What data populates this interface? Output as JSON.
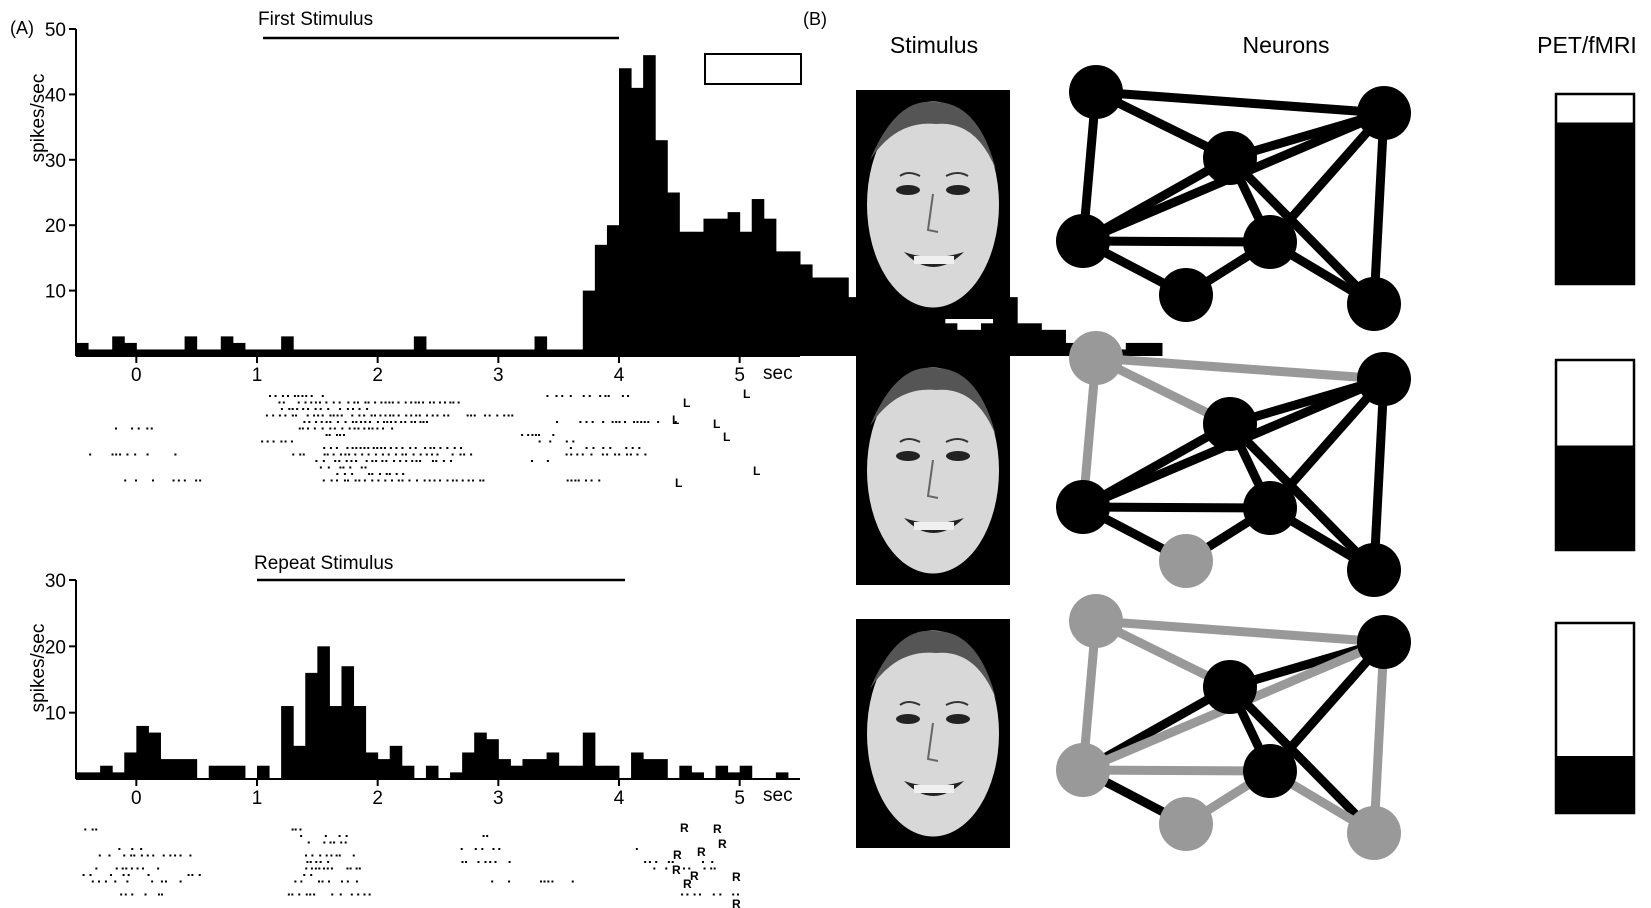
{
  "figure": {
    "panel_a_label": "(A)",
    "panel_b_label": "(B)"
  },
  "chart_data": [
    {
      "type": "bar",
      "panel": "A-top",
      "title": "First Stimulus",
      "ylabel": "spikes/sec",
      "x_unit_label": "sec",
      "xlim": [
        -0.5,
        5.5
      ],
      "ylim": [
        0,
        50
      ],
      "x_ticks": [
        0,
        1,
        2,
        3,
        4,
        5
      ],
      "y_ticks": [
        10,
        20,
        30,
        40,
        50
      ],
      "stimulus_bar": [
        1.05,
        4.0
      ],
      "bin_width": 0.1,
      "bins_start": -0.5,
      "values": [
        2,
        1,
        1,
        3,
        2,
        1,
        1,
        1,
        1,
        3,
        1,
        1,
        3,
        2,
        1,
        1,
        1,
        3,
        1,
        1,
        1,
        1,
        1,
        1,
        1,
        1,
        1,
        1,
        3,
        1,
        1,
        1,
        1,
        1,
        1,
        1,
        1,
        1,
        3,
        1,
        1,
        1,
        10,
        17,
        20,
        44,
        41,
        46,
        33,
        25,
        19,
        19,
        21,
        21,
        22,
        19,
        24,
        21,
        16,
        16,
        14,
        12,
        12,
        12,
        9,
        9,
        9,
        8,
        8,
        8,
        7,
        6,
        5,
        4,
        4,
        5,
        8,
        9,
        5,
        5,
        4,
        4,
        2,
        2,
        2,
        2,
        1,
        2,
        2,
        2
      ],
      "raster_label": "L"
    },
    {
      "type": "bar",
      "panel": "A-bottom",
      "title": "Repeat Stimulus",
      "ylabel": "spikes/sec",
      "x_unit_label": "sec",
      "xlim": [
        -0.5,
        5.5
      ],
      "ylim": [
        0,
        30
      ],
      "x_ticks": [
        0,
        1,
        2,
        3,
        4,
        5
      ],
      "y_ticks": [
        10,
        20,
        30
      ],
      "stimulus_bar": [
        1.0,
        4.05
      ],
      "values": [
        {
          "x0": -0.5,
          "x1": -0.3,
          "v": 1
        },
        {
          "x0": -0.3,
          "x1": -0.2,
          "v": 2
        },
        {
          "x0": -0.2,
          "x1": -0.1,
          "v": 1
        },
        {
          "x0": -0.1,
          "x1": 0.0,
          "v": 4
        },
        {
          "x0": 0.0,
          "x1": 0.1,
          "v": 8
        },
        {
          "x0": 0.1,
          "x1": 0.2,
          "v": 7
        },
        {
          "x0": 0.2,
          "x1": 0.3,
          "v": 3
        },
        {
          "x0": 0.3,
          "x1": 0.5,
          "v": 3
        },
        {
          "x0": 0.6,
          "x1": 0.9,
          "v": 2
        },
        {
          "x0": 1.0,
          "x1": 1.1,
          "v": 2
        },
        {
          "x0": 1.2,
          "x1": 1.3,
          "v": 11
        },
        {
          "x0": 1.3,
          "x1": 1.4,
          "v": 5
        },
        {
          "x0": 1.4,
          "x1": 1.5,
          "v": 16
        },
        {
          "x0": 1.5,
          "x1": 1.6,
          "v": 20
        },
        {
          "x0": 1.6,
          "x1": 1.7,
          "v": 11
        },
        {
          "x0": 1.7,
          "x1": 1.8,
          "v": 17
        },
        {
          "x0": 1.8,
          "x1": 1.9,
          "v": 11
        },
        {
          "x0": 1.9,
          "x1": 2.0,
          "v": 4
        },
        {
          "x0": 2.0,
          "x1": 2.1,
          "v": 3
        },
        {
          "x0": 2.1,
          "x1": 2.2,
          "v": 5
        },
        {
          "x0": 2.2,
          "x1": 2.3,
          "v": 2
        },
        {
          "x0": 2.4,
          "x1": 2.5,
          "v": 2
        },
        {
          "x0": 2.6,
          "x1": 2.7,
          "v": 1
        },
        {
          "x0": 2.7,
          "x1": 2.8,
          "v": 4
        },
        {
          "x0": 2.8,
          "x1": 2.9,
          "v": 7
        },
        {
          "x0": 2.9,
          "x1": 3.0,
          "v": 6
        },
        {
          "x0": 3.0,
          "x1": 3.1,
          "v": 3
        },
        {
          "x0": 3.1,
          "x1": 3.2,
          "v": 2
        },
        {
          "x0": 3.2,
          "x1": 3.3,
          "v": 3
        },
        {
          "x0": 3.3,
          "x1": 3.4,
          "v": 3
        },
        {
          "x0": 3.4,
          "x1": 3.5,
          "v": 4
        },
        {
          "x0": 3.5,
          "x1": 3.6,
          "v": 2
        },
        {
          "x0": 3.6,
          "x1": 3.7,
          "v": 2
        },
        {
          "x0": 3.7,
          "x1": 3.8,
          "v": 7
        },
        {
          "x0": 3.8,
          "x1": 3.9,
          "v": 2
        },
        {
          "x0": 3.9,
          "x1": 4.0,
          "v": 2
        },
        {
          "x0": 4.1,
          "x1": 4.2,
          "v": 4
        },
        {
          "x0": 4.2,
          "x1": 4.4,
          "v": 3
        },
        {
          "x0": 4.5,
          "x1": 4.6,
          "v": 2
        },
        {
          "x0": 4.6,
          "x1": 4.7,
          "v": 1
        },
        {
          "x0": 4.8,
          "x1": 4.9,
          "v": 2
        },
        {
          "x0": 4.9,
          "x1": 5.0,
          "v": 1
        },
        {
          "x0": 5.0,
          "x1": 5.1,
          "v": 2
        },
        {
          "x0": 5.3,
          "x1": 5.4,
          "v": 1
        }
      ],
      "raster_label": "R"
    }
  ],
  "panel_b": {
    "headers": [
      "Stimulus",
      "Neurons",
      "PET/fMRI"
    ],
    "rows": [
      {
        "pet_fraction": 0.85,
        "gray_nodes": [],
        "gray_edges": []
      },
      {
        "pet_fraction": 0.55,
        "gray_nodes": [
          "n1",
          "n6"
        ],
        "gray_edges": [
          "n1-n2",
          "n1-n3",
          "n4-n6",
          "n1-n4"
        ]
      },
      {
        "pet_fraction": 0.3,
        "gray_nodes": [
          "n1",
          "n2",
          "n6",
          "n7"
        ],
        "gray_edges": [
          "n1-n2",
          "n1-n3",
          "n2-n3",
          "n2-n5",
          "n2-n7",
          "n4-n6",
          "n1-n4",
          "n6-n5",
          "n5-n7",
          "n3-n7"
        ]
      }
    ],
    "colors": {
      "active": "#000000",
      "inactive": "#999999"
    }
  }
}
